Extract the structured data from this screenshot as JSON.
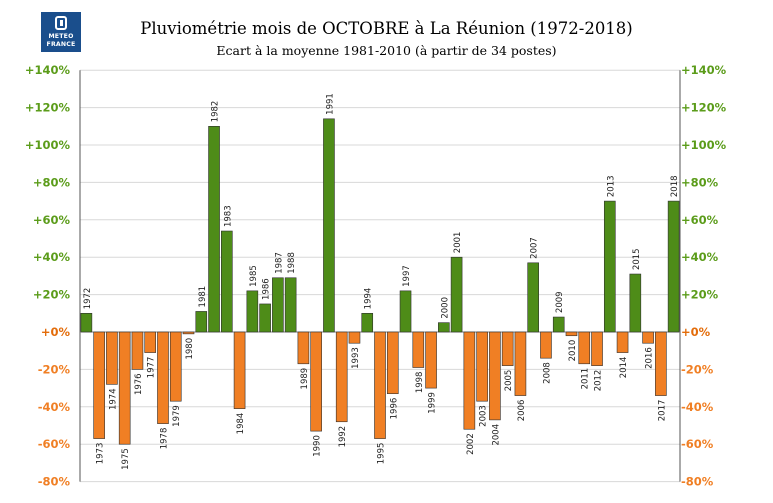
{
  "logo": {
    "line1": "METEO",
    "line2": "FRANCE",
    "icon": "meteo-france-logo-icon"
  },
  "colors": {
    "positive": "#4e8c18",
    "negative": "#f07f24",
    "positive_tick": "#5b9c1a",
    "negative_tick": "#f07f24",
    "grid": "#d8d8d8"
  },
  "chart_data": {
    "type": "bar",
    "title": "Pluviométrie mois de OCTOBRE à La Réunion (1972-2018)",
    "subtitle": "Ecart à la moyenne 1981-2010 (à partir de 34 postes)",
    "ylim": [
      -80,
      140
    ],
    "yticks": [
      -80,
      -60,
      -40,
      -20,
      0,
      20,
      40,
      60,
      80,
      100,
      120,
      140
    ],
    "ytick_labels": [
      "-80%",
      "-60%",
      "-40%",
      "-20%",
      "+0%",
      "+20%",
      "+40%",
      "+60%",
      "+80%",
      "+100%",
      "+120%",
      "+140%"
    ],
    "grid": true,
    "categories": [
      "1972",
      "1973",
      "1974",
      "1975",
      "1976",
      "1977",
      "1978",
      "1979",
      "1980",
      "1981",
      "1982",
      "1983",
      "1984",
      "1985",
      "1986",
      "1987",
      "1988",
      "1989",
      "1990",
      "1991",
      "1992",
      "1993",
      "1994",
      "1995",
      "1996",
      "1997",
      "1998",
      "1999",
      "2000",
      "2001",
      "2002",
      "2003",
      "2004",
      "2005",
      "2006",
      "2007",
      "2008",
      "2009",
      "2010",
      "2011",
      "2012",
      "2013",
      "2014",
      "2015",
      "2016",
      "2017",
      "2018"
    ],
    "values": [
      10,
      -57,
      -28,
      -60,
      -20,
      -11,
      -49,
      -37,
      -1,
      11,
      110,
      54,
      -41,
      22,
      15,
      29,
      29,
      -17,
      -53,
      114,
      -48,
      -6,
      10,
      -57,
      -33,
      22,
      -19,
      -30,
      5,
      40,
      -52,
      -37,
      -47,
      -18,
      -34,
      37,
      -14,
      8,
      -2,
      -17,
      -18,
      70,
      -11,
      31,
      -6,
      -34,
      70
    ]
  }
}
